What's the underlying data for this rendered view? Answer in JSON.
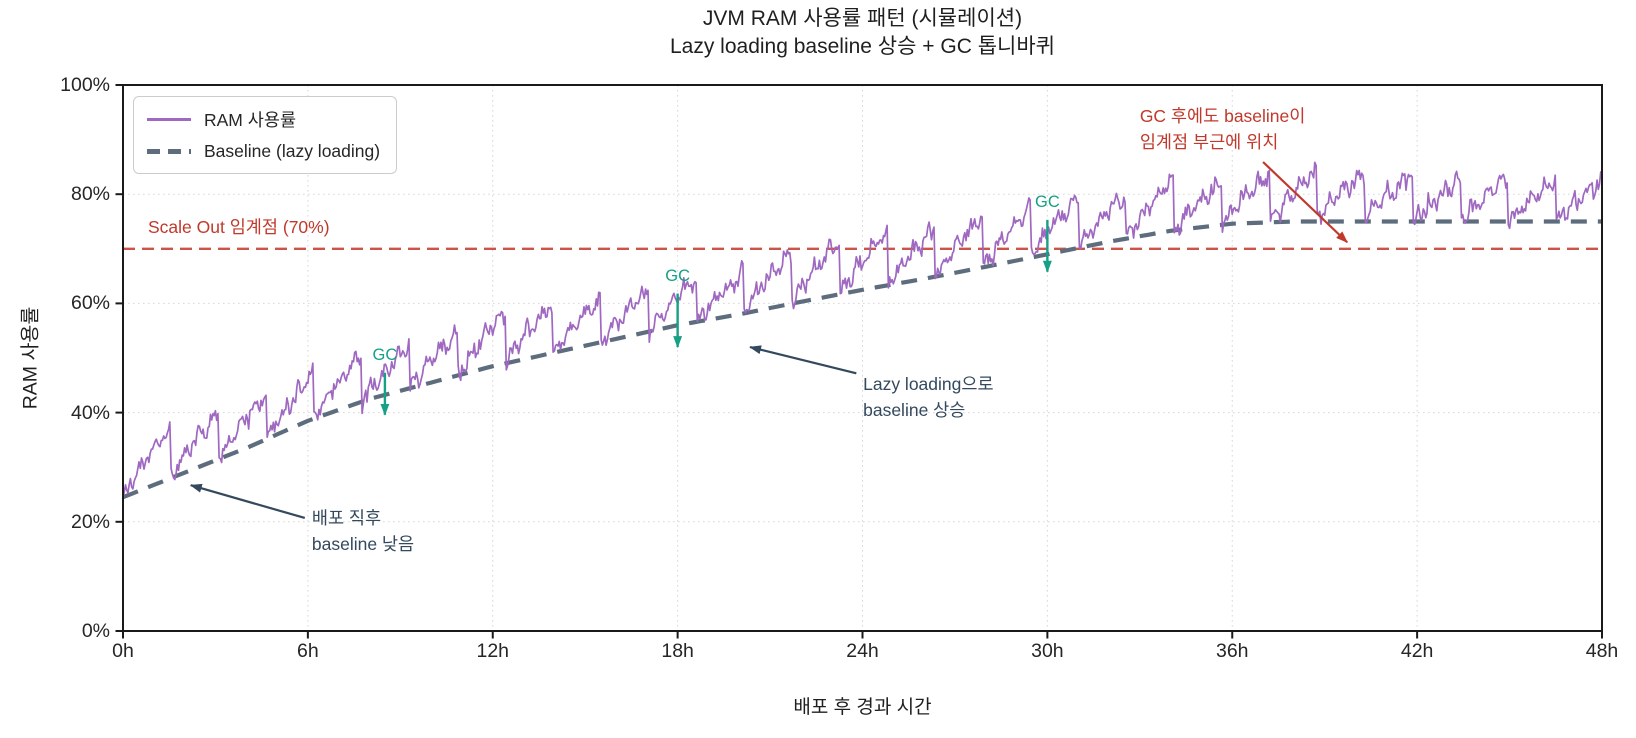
{
  "chart_data": {
    "type": "line",
    "title": "JVM RAM 사용률 패턴 (시뮬레이션)",
    "subtitle": "Lazy loading baseline 상승 + GC 톱니바퀴",
    "xlabel": "배포 후 경과 시간",
    "ylabel": "RAM 사용률",
    "xlim": [
      0,
      48
    ],
    "ylim": [
      0,
      100
    ],
    "grid": "dotted",
    "grid_color": "#d8d8d8",
    "spine_color": "#1a1a1a",
    "x_ticks": [
      {
        "v": 0,
        "label": "0h"
      },
      {
        "v": 6,
        "label": "6h"
      },
      {
        "v": 12,
        "label": "12h"
      },
      {
        "v": 18,
        "label": "18h"
      },
      {
        "v": 24,
        "label": "24h"
      },
      {
        "v": 30,
        "label": "30h"
      },
      {
        "v": 36,
        "label": "36h"
      },
      {
        "v": 42,
        "label": "42h"
      },
      {
        "v": 48,
        "label": "48h"
      }
    ],
    "y_ticks": [
      {
        "v": 0,
        "label": "0%"
      },
      {
        "v": 20,
        "label": "20%"
      },
      {
        "v": 40,
        "label": "40%"
      },
      {
        "v": 60,
        "label": "60%"
      },
      {
        "v": 80,
        "label": "80%"
      },
      {
        "v": 100,
        "label": "100%"
      }
    ],
    "legend": {
      "position": "upper left",
      "items": [
        {
          "label": "RAM 사용률",
          "color": "#9f68c1",
          "style": "solid"
        },
        {
          "label": "Baseline (lazy loading)",
          "color": "#5d6d7e",
          "style": "dashed"
        }
      ]
    },
    "threshold": {
      "label": "Scale Out 임계점 (70%)",
      "value": 70,
      "line_color": "#c95447",
      "label_color": "#c0392b"
    },
    "baseline_points": [
      [
        0,
        24.5
      ],
      [
        2,
        29
      ],
      [
        4,
        33.5
      ],
      [
        6,
        38.5
      ],
      [
        8,
        42.5
      ],
      [
        10,
        45.5
      ],
      [
        12,
        48.5
      ],
      [
        14,
        51
      ],
      [
        16,
        53.5
      ],
      [
        18,
        56
      ],
      [
        20,
        58
      ],
      [
        22,
        60.3
      ],
      [
        24,
        62.5
      ],
      [
        26,
        64.5
      ],
      [
        28,
        66.7
      ],
      [
        30,
        69
      ],
      [
        32,
        71.3
      ],
      [
        34,
        73.3
      ],
      [
        36,
        74.6
      ],
      [
        38,
        75
      ],
      [
        48,
        75
      ]
    ],
    "ram_series": {
      "name": "RAM 사용률",
      "color": "#9f68c1",
      "generator": "gc-sawtooth-over-baseline",
      "period_h": 1.55,
      "tooth_amplitude_pct": 9.5,
      "amplitude_jitter_pct": 2.0,
      "noise_pct": 1.1,
      "step_h": 0.04,
      "seed": 3,
      "start_pct": 24.5,
      "end_pct_approx": 83
    },
    "gc_events": [
      {
        "t": 8.5,
        "from_pct": 47.3,
        "to_pct": 39.6
      },
      {
        "t": 18,
        "from_pct": 61.8,
        "to_pct": 52.0
      },
      {
        "t": 30,
        "from_pct": 75.3,
        "to_pct": 65.8
      }
    ],
    "gc_label": "GC",
    "gc_color": "#16a085",
    "annotations": [
      {
        "text": "배포 직후\nbaseline 낮음",
        "color": "#34495e",
        "text_at": [
          6.13,
          23.1
        ],
        "arrow_from": [
          5.9,
          20.7
        ],
        "arrow_to": [
          2.2,
          26.7
        ]
      },
      {
        "text": "Lazy loading으로\nbaseline 상승",
        "color": "#34495e",
        "text_at": [
          24.02,
          47.6
        ],
        "arrow_from": [
          23.8,
          47.2
        ],
        "arrow_to": [
          20.35,
          52.0
        ]
      },
      {
        "text": "GC 후에도 baseline이\n임계점 부근에 위치",
        "color": "#c0392b",
        "text_at": [
          33.0,
          96.7
        ],
        "arrow_from": [
          37.0,
          85.9
        ],
        "arrow_to": [
          39.73,
          71.2
        ]
      }
    ]
  }
}
